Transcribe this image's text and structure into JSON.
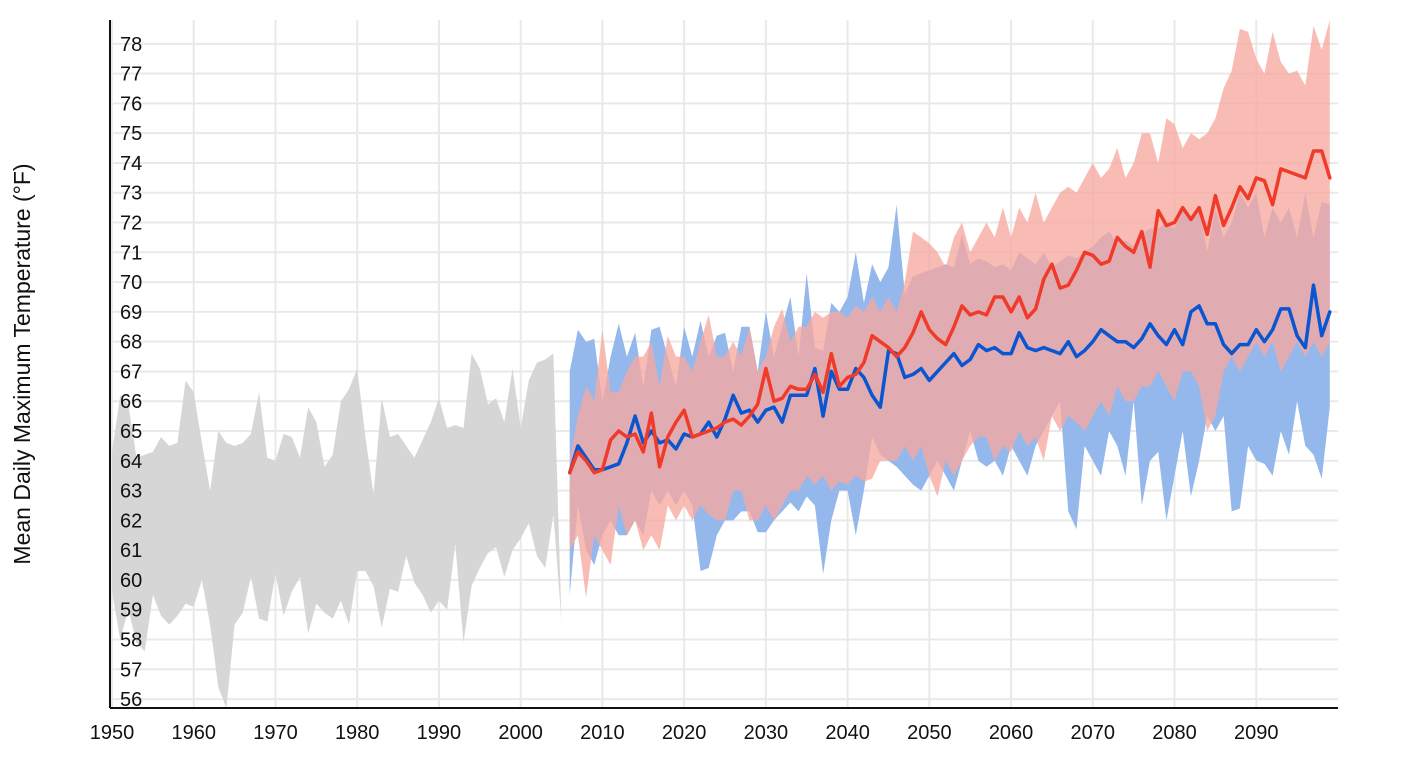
{
  "chart_data": {
    "type": "area",
    "title": "",
    "xlabel": "",
    "ylabel": "Mean Daily Maximum Temperature (°F)",
    "xlim": [
      1950,
      2100
    ],
    "ylim": [
      55.7,
      78.8
    ],
    "x_ticks": [
      1950,
      1960,
      1970,
      1980,
      1990,
      2000,
      2010,
      2020,
      2030,
      2040,
      2050,
      2060,
      2070,
      2080,
      2090
    ],
    "y_ticks": [
      56,
      57,
      58,
      59,
      60,
      61,
      62,
      63,
      64,
      65,
      66,
      67,
      68,
      69,
      70,
      71,
      72,
      73,
      74,
      75,
      76,
      77,
      78
    ],
    "grid": true,
    "legend": "none",
    "colors": {
      "observed_band": "#d6d6d6",
      "lower_band": "#94b8ec",
      "higher_band": "#f7a9a0",
      "lower_line": "#0a55d0",
      "higher_line": "#f03a2a",
      "grid": "#e9e9e9",
      "axis": "#111111"
    },
    "series": [
      {
        "kind": "band",
        "x": [
          1950,
          1951,
          1952,
          1953,
          1954,
          1955,
          1956,
          1957,
          1958,
          1959,
          1960,
          1961,
          1962,
          1963,
          1964,
          1965,
          1966,
          1967,
          1968,
          1969,
          1970,
          1971,
          1972,
          1973,
          1974,
          1975,
          1976,
          1977,
          1978,
          1979,
          1980,
          1981,
          1982,
          1983,
          1984,
          1985,
          1986,
          1987,
          1988,
          1989,
          1990,
          1991,
          1992,
          1993,
          1994,
          1995,
          1996,
          1997,
          1998,
          1999,
          2000,
          2001,
          2002,
          2003,
          2004,
          2005
        ],
        "low": [
          59.6,
          58.0,
          59.0,
          57.9,
          57.6,
          59.5,
          58.8,
          58.5,
          58.8,
          59.2,
          59.1,
          60.0,
          58.5,
          56.4,
          55.7,
          58.5,
          58.9,
          60.1,
          58.7,
          58.6,
          60.2,
          58.8,
          59.6,
          60.1,
          58.2,
          59.2,
          58.9,
          58.7,
          59.3,
          58.5,
          60.3,
          60.3,
          59.8,
          58.4,
          59.7,
          59.6,
          60.8,
          59.9,
          59.5,
          58.9,
          59.3,
          59.0,
          61.2,
          57.9,
          59.8,
          60.4,
          60.9,
          61.1,
          60.1,
          61.0,
          61.4,
          61.9,
          60.8,
          60.4,
          62.2,
          58.6
        ],
        "high": [
          64.3,
          66.2,
          65.9,
          64.1,
          64.2,
          64.3,
          64.8,
          64.5,
          64.6,
          66.7,
          66.3,
          64.6,
          63.0,
          65.0,
          64.6,
          64.5,
          64.6,
          64.9,
          66.3,
          64.1,
          64.0,
          64.9,
          64.8,
          64.1,
          65.8,
          65.3,
          63.8,
          64.2,
          66.0,
          66.4,
          67.1,
          64.8,
          62.9,
          66.1,
          64.8,
          64.9,
          64.5,
          64.1,
          64.7,
          65.3,
          66.1,
          65.1,
          65.2,
          65.1,
          67.6,
          67.1,
          65.9,
          66.1,
          65.3,
          67.1,
          65.1,
          66.7,
          67.3,
          67.4,
          67.6,
          58.6
        ]
      },
      {
        "kind": "band",
        "x": [
          2006,
          2007,
          2008,
          2009,
          2010,
          2011,
          2012,
          2013,
          2014,
          2015,
          2016,
          2017,
          2018,
          2019,
          2020,
          2021,
          2022,
          2023,
          2024,
          2025,
          2026,
          2027,
          2028,
          2029,
          2030,
          2031,
          2032,
          2033,
          2034,
          2035,
          2036,
          2037,
          2038,
          2039,
          2040,
          2041,
          2042,
          2043,
          2044,
          2045,
          2046,
          2047,
          2048,
          2049,
          2050,
          2051,
          2052,
          2053,
          2054,
          2055,
          2056,
          2057,
          2058,
          2059,
          2060,
          2061,
          2062,
          2063,
          2064,
          2065,
          2066,
          2067,
          2068,
          2069,
          2070,
          2071,
          2072,
          2073,
          2074,
          2075,
          2076,
          2077,
          2078,
          2079,
          2080,
          2081,
          2082,
          2083,
          2084,
          2085,
          2086,
          2087,
          2088,
          2089,
          2090,
          2091,
          2092,
          2093,
          2094,
          2095,
          2096,
          2097,
          2098,
          2099
        ],
        "low": [
          59.5,
          62.5,
          61.0,
          60.5,
          61.5,
          62.0,
          61.5,
          61.5,
          62.0,
          61.5,
          63.0,
          62.5,
          63.0,
          62.5,
          63.0,
          62.5,
          60.3,
          60.4,
          61.5,
          62.0,
          62.0,
          62.3,
          62.3,
          61.6,
          61.6,
          62.0,
          62.3,
          62.6,
          62.3,
          62.8,
          62.5,
          60.2,
          62.0,
          63.0,
          63.0,
          61.5,
          63.0,
          64.8,
          64.2,
          64.0,
          63.8,
          63.5,
          63.2,
          63.0,
          63.5,
          64.0,
          63.5,
          63.0,
          64.0,
          65.0,
          64.0,
          63.8,
          64.0,
          63.5,
          64.5,
          64.0,
          63.5,
          64.5,
          65.0,
          65.5,
          66.0,
          62.3,
          61.7,
          64.5,
          64.0,
          63.5,
          65.0,
          64.5,
          63.5,
          66.0,
          62.5,
          64.0,
          64.3,
          62.0,
          63.5,
          65.0,
          62.8,
          64.0,
          65.5,
          65.0,
          65.5,
          62.3,
          62.4,
          64.5,
          64.0,
          63.9,
          63.5,
          65.0,
          64.2,
          66.0,
          64.5,
          64.2,
          63.4,
          65.8
        ],
        "high": [
          67.0,
          68.4,
          68.0,
          68.1,
          66.0,
          67.5,
          68.6,
          67.5,
          68.3,
          66.5,
          68.4,
          68.5,
          67.5,
          66.5,
          68.5,
          67.5,
          68.7,
          67.5,
          68.2,
          68.3,
          67.0,
          68.5,
          68.5,
          67.0,
          69.0,
          67.5,
          68.5,
          69.5,
          67.5,
          70.3,
          67.8,
          67.7,
          69.3,
          69.0,
          69.5,
          71.0,
          69.3,
          70.6,
          70.0,
          70.5,
          72.6,
          69.6,
          70.2,
          70.3,
          70.4,
          70.5,
          70.6,
          70.5,
          71.6,
          70.6,
          70.8,
          70.7,
          70.5,
          70.6,
          70.4,
          71.0,
          70.8,
          70.6,
          71.0,
          70.5,
          70.7,
          70.9,
          70.8,
          71.0,
          71.2,
          71.5,
          71.7,
          71.3,
          71.4,
          71.2,
          71.6,
          71.8,
          71.8,
          72.0,
          71.8,
          72.5,
          72.0,
          72.5,
          71.0,
          72.5,
          71.5,
          72.0,
          73.0,
          72.5,
          73.0,
          71.5,
          72.5,
          72.0,
          72.5,
          71.5,
          73.0,
          71.5,
          72.7,
          72.6
        ]
      },
      {
        "kind": "band",
        "x": [
          2006,
          2007,
          2008,
          2009,
          2010,
          2011,
          2012,
          2013,
          2014,
          2015,
          2016,
          2017,
          2018,
          2019,
          2020,
          2021,
          2022,
          2023,
          2024,
          2025,
          2026,
          2027,
          2028,
          2029,
          2030,
          2031,
          2032,
          2033,
          2034,
          2035,
          2036,
          2037,
          2038,
          2039,
          2040,
          2041,
          2042,
          2043,
          2044,
          2045,
          2046,
          2047,
          2048,
          2049,
          2050,
          2051,
          2052,
          2053,
          2054,
          2055,
          2056,
          2057,
          2058,
          2059,
          2060,
          2061,
          2062,
          2063,
          2064,
          2065,
          2066,
          2067,
          2068,
          2069,
          2070,
          2071,
          2072,
          2073,
          2074,
          2075,
          2076,
          2077,
          2078,
          2079,
          2080,
          2081,
          2082,
          2083,
          2084,
          2085,
          2086,
          2087,
          2088,
          2089,
          2090,
          2091,
          2092,
          2093,
          2094,
          2095,
          2096,
          2097,
          2098,
          2099
        ],
        "low": [
          61.0,
          61.5,
          59.4,
          61.5,
          61.0,
          60.5,
          62.5,
          61.5,
          62.0,
          61.0,
          61.5,
          61.0,
          62.5,
          62.0,
          62.5,
          62.0,
          62.5,
          62.2,
          62.0,
          62.0,
          63.0,
          63.0,
          62.0,
          62.0,
          62.5,
          62.0,
          62.5,
          63.0,
          63.0,
          63.5,
          63.2,
          63.5,
          63.0,
          63.3,
          63.2,
          63.5,
          63.3,
          63.4,
          64.0,
          64.0,
          64.0,
          64.5,
          64.0,
          64.5,
          63.5,
          62.8,
          64.0,
          63.5,
          64.0,
          64.5,
          64.8,
          64.8,
          64.0,
          64.5,
          64.3,
          65.0,
          64.5,
          64.8,
          64.0,
          65.5,
          65.0,
          65.5,
          65.3,
          65.0,
          65.5,
          66.0,
          65.5,
          66.5,
          66.0,
          66.0,
          66.5,
          66.5,
          67.0,
          66.5,
          66.0,
          67.0,
          67.0,
          66.5,
          65.0,
          65.5,
          67.0,
          67.5,
          67.0,
          67.5,
          68.0,
          67.5,
          68.0,
          67.0,
          67.5,
          68.0,
          67.5,
          68.0,
          67.5,
          68.0
        ],
        "high": [
          64.0,
          65.5,
          66.5,
          66.0,
          68.4,
          66.3,
          66.3,
          67.0,
          67.5,
          67.5,
          68.0,
          66.5,
          68.2,
          67.5,
          67.5,
          67.0,
          68.0,
          68.9,
          67.5,
          67.5,
          68.0,
          67.5,
          68.5,
          67.0,
          67.5,
          68.5,
          69.1,
          68.0,
          68.5,
          68.5,
          69.0,
          68.8,
          69.0,
          69.0,
          68.8,
          69.2,
          69.0,
          69.5,
          69.0,
          69.5,
          69.0,
          70.0,
          71.7,
          71.5,
          71.3,
          71.0,
          70.5,
          71.5,
          72.0,
          71.0,
          71.5,
          72.0,
          71.5,
          72.5,
          71.5,
          72.5,
          72.0,
          73.0,
          72.0,
          72.5,
          73.0,
          73.2,
          73.0,
          73.5,
          74.0,
          73.5,
          73.8,
          74.5,
          73.5,
          74.0,
          75.0,
          75.0,
          74.0,
          75.5,
          75.3,
          74.5,
          75.0,
          74.8,
          75.0,
          75.5,
          76.5,
          77.1,
          78.5,
          78.4,
          77.5,
          77.0,
          78.4,
          77.4,
          77.0,
          77.1,
          76.6,
          78.6,
          77.8,
          78.8
        ]
      },
      {
        "kind": "line",
        "x": [
          2006,
          2007,
          2008,
          2009,
          2010,
          2011,
          2012,
          2013,
          2014,
          2015,
          2016,
          2017,
          2018,
          2019,
          2020,
          2021,
          2022,
          2023,
          2024,
          2025,
          2026,
          2027,
          2028,
          2029,
          2030,
          2031,
          2032,
          2033,
          2034,
          2035,
          2036,
          2037,
          2038,
          2039,
          2040,
          2041,
          2042,
          2043,
          2044,
          2045,
          2046,
          2047,
          2048,
          2049,
          2050,
          2051,
          2052,
          2053,
          2054,
          2055,
          2056,
          2057,
          2058,
          2059,
          2060,
          2061,
          2062,
          2063,
          2064,
          2065,
          2066,
          2067,
          2068,
          2069,
          2070,
          2071,
          2072,
          2073,
          2074,
          2075,
          2076,
          2077,
          2078,
          2079,
          2080,
          2081,
          2082,
          2083,
          2084,
          2085,
          2086,
          2087,
          2088,
          2089,
          2090,
          2091,
          2092,
          2093,
          2094,
          2095,
          2096,
          2097,
          2098,
          2099
        ],
        "values": [
          63.6,
          64.5,
          64.1,
          63.7,
          63.7,
          63.8,
          63.9,
          64.6,
          65.5,
          64.6,
          65.0,
          64.6,
          64.7,
          64.4,
          64.9,
          64.8,
          64.9,
          65.3,
          64.8,
          65.4,
          66.2,
          65.6,
          65.7,
          65.3,
          65.7,
          65.8,
          65.3,
          66.2,
          66.2,
          66.2,
          67.1,
          65.5,
          67.0,
          66.4,
          66.4,
          67.1,
          66.8,
          66.2,
          65.8,
          67.7,
          67.6,
          66.8,
          66.9,
          67.1,
          66.7,
          67.0,
          67.3,
          67.6,
          67.2,
          67.4,
          67.9,
          67.7,
          67.8,
          67.6,
          67.6,
          68.3,
          67.8,
          67.7,
          67.8,
          67.7,
          67.6,
          68.0,
          67.5,
          67.7,
          68.0,
          68.4,
          68.2,
          68.0,
          68.0,
          67.8,
          68.1,
          68.6,
          68.2,
          67.9,
          68.4,
          67.9,
          69.0,
          69.2,
          68.6,
          68.6,
          67.9,
          67.6,
          67.9,
          67.9,
          68.4,
          68.0,
          68.4,
          69.1,
          69.1,
          68.2,
          67.8,
          69.9,
          68.2,
          69.0
        ]
      },
      {
        "kind": "line",
        "x": [
          2006,
          2007,
          2008,
          2009,
          2010,
          2011,
          2012,
          2013,
          2014,
          2015,
          2016,
          2017,
          2018,
          2019,
          2020,
          2021,
          2022,
          2023,
          2024,
          2025,
          2026,
          2027,
          2028,
          2029,
          2030,
          2031,
          2032,
          2033,
          2034,
          2035,
          2036,
          2037,
          2038,
          2039,
          2040,
          2041,
          2042,
          2043,
          2044,
          2045,
          2046,
          2047,
          2048,
          2049,
          2050,
          2051,
          2052,
          2053,
          2054,
          2055,
          2056,
          2057,
          2058,
          2059,
          2060,
          2061,
          2062,
          2063,
          2064,
          2065,
          2066,
          2067,
          2068,
          2069,
          2070,
          2071,
          2072,
          2073,
          2074,
          2075,
          2076,
          2077,
          2078,
          2079,
          2080,
          2081,
          2082,
          2083,
          2084,
          2085,
          2086,
          2087,
          2088,
          2089,
          2090,
          2091,
          2092,
          2093,
          2094,
          2095,
          2096,
          2097,
          2098,
          2099
        ],
        "values": [
          63.6,
          64.3,
          64.0,
          63.6,
          63.7,
          64.7,
          65.0,
          64.8,
          64.9,
          64.3,
          65.6,
          63.8,
          64.8,
          65.3,
          65.7,
          64.8,
          64.9,
          65.0,
          65.1,
          65.3,
          65.4,
          65.2,
          65.5,
          65.9,
          67.1,
          66.0,
          66.1,
          66.5,
          66.4,
          66.4,
          66.9,
          66.3,
          67.6,
          66.5,
          66.8,
          66.9,
          67.3,
          68.2,
          68.0,
          67.8,
          67.5,
          67.8,
          68.3,
          69.0,
          68.4,
          68.1,
          67.9,
          68.5,
          69.2,
          68.9,
          69.0,
          68.9,
          69.5,
          69.5,
          69.0,
          69.5,
          68.8,
          69.1,
          70.1,
          70.6,
          69.8,
          69.9,
          70.4,
          71.0,
          70.9,
          70.6,
          70.7,
          71.5,
          71.2,
          71.0,
          71.7,
          70.5,
          72.4,
          71.9,
          72.0,
          72.5,
          72.1,
          72.5,
          71.6,
          72.9,
          71.9,
          72.5,
          73.2,
          72.8,
          73.5,
          73.4,
          72.6,
          73.8,
          73.7,
          73.6,
          73.5,
          74.4,
          74.4,
          73.5
        ]
      }
    ]
  }
}
